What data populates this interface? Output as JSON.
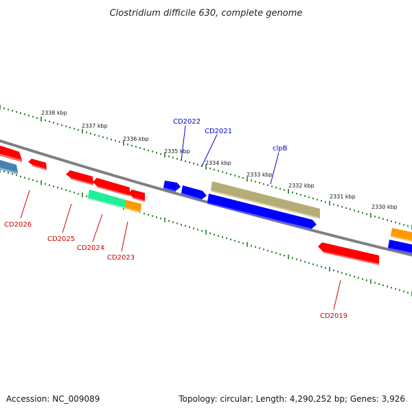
{
  "title": "Clostridium difficile 630, complete genome",
  "kbp_labels": [
    "2338 kbp",
    "2337 kbp",
    "2336 kbp",
    "2335 kbp",
    "2334 kbp",
    "2333 kbp",
    "2332 kbp",
    "2331 kbp",
    "2330 kbp"
  ],
  "gene_labels": {
    "CD2022": "CD2022",
    "CD2021": "CD2021",
    "clpB": "clpB",
    "CD2026": "CD2026",
    "CD2025": "CD2025",
    "CD2024": "CD2024",
    "CD2023": "CD2023",
    "CD2019": "CD2019"
  },
  "colors": {
    "backbone": "#7f7f7f",
    "tick": "#1a7a1a",
    "forward_label": "#0000cc",
    "reverse_label": "#cc0000",
    "red_gene": "#ff0000",
    "blue_gene": "#0000ff",
    "olive_gene": "#b5ad78",
    "green_gene": "#22ee99",
    "orange_gene": "#ff9900",
    "steel_gene": "#4682b4"
  },
  "footer": {
    "accession": "Accession: NC_009089",
    "summary": "Topology: circular; Length: 4,290,252 bp; Genes: 3,926"
  }
}
